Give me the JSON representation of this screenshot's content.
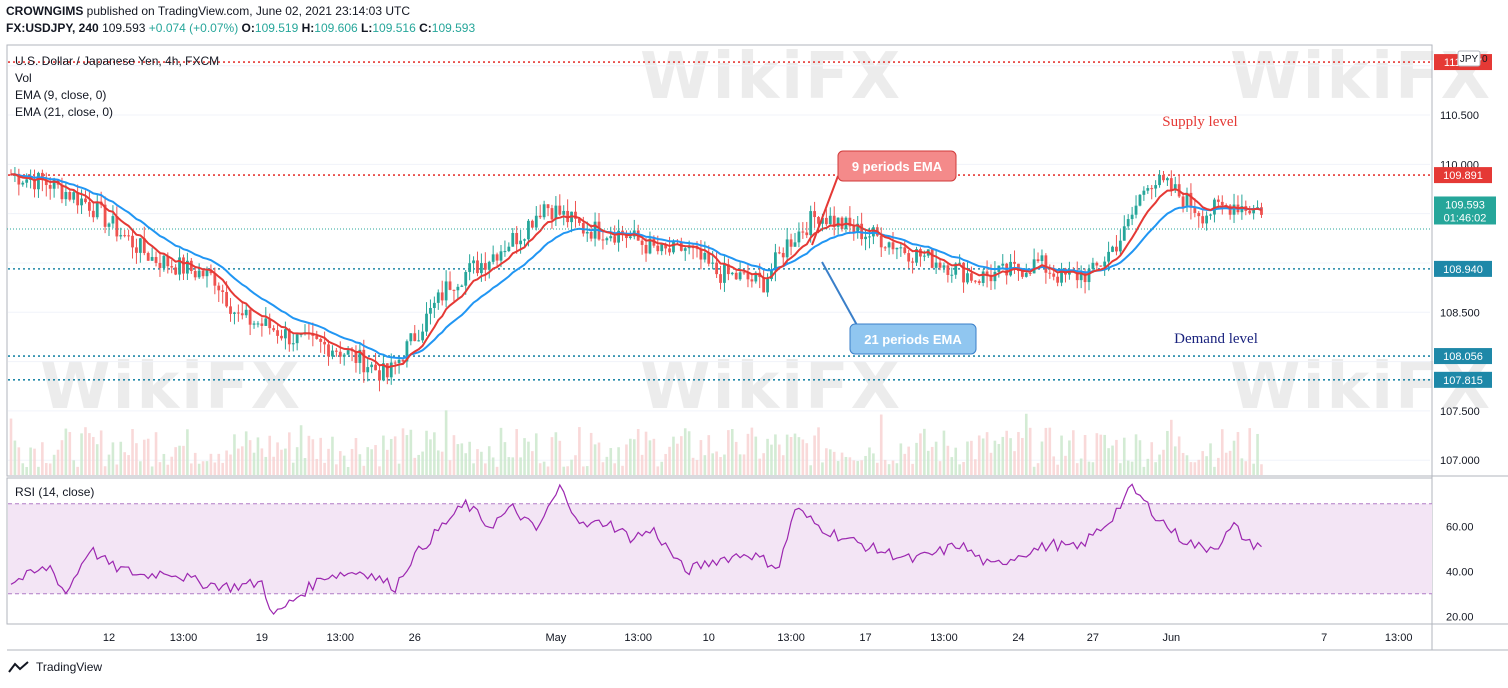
{
  "header": {
    "line1_author": "CROWNGIMS",
    "line1_rest": "published on TradingView.com, June 02, 2021 23:14:03 UTC",
    "symbol": "FX:USDJPY, 240",
    "price": "109.593",
    "change": "+0.074 (+0.07%)",
    "ohlc": {
      "o_label": "O:",
      "o": "109.519",
      "h_label": "H:",
      "h": "109.606",
      "l_label": "L:",
      "l": "109.516",
      "c_label": "C:",
      "c": "109.593"
    }
  },
  "main_pane": {
    "title": "U.S. Dollar / Japanese Yen, 4h, FXCM",
    "vol_label": "Vol",
    "ema9_label": "EMA (9, close, 0)",
    "ema21_label": "EMA (21, close, 0)",
    "currency_badge": "JPY",
    "currency_badge_num": "0"
  },
  "rsi_pane": {
    "title": "RSI (14, close)"
  },
  "watermark": "WikiFX",
  "footer": {
    "brand": "TradingView"
  },
  "colors": {
    "up": "#26a69a",
    "down": "#ef5350",
    "ema9": "#e53935",
    "ema21": "#2196f3",
    "supply": "#e53935",
    "demand": "#1e88a8",
    "rsi": "#9c27b0",
    "rsi_band": "#f3e5f5"
  },
  "chart_data": [
    {
      "type": "candlestick",
      "title": "U.S. Dollar / Japanese Yen, 4h, FXCM",
      "ylim": [
        106.85,
        111.2
      ],
      "y_ticks": [
        "107.000",
        "107.500",
        "108.500",
        "110.000",
        "110.500",
        "111.000"
      ],
      "x_ticks": [
        "12",
        "13:00",
        "19",
        "13:00",
        "26",
        "May",
        "13:00",
        "10",
        "13:00",
        "17",
        "13:00",
        "24",
        "27",
        "Jun",
        "7",
        "13:00"
      ],
      "horizontal_levels": [
        {
          "value": 111.037,
          "label": "111.037",
          "style": "dotted",
          "color": "#e53935"
        },
        {
          "value": 109.891,
          "label": "109.891",
          "style": "dotted",
          "color": "#e53935"
        },
        {
          "value": 108.94,
          "label": "108.940",
          "style": "dotted",
          "color": "#1e88a8"
        },
        {
          "value": 108.056,
          "label": "108.056",
          "style": "dotted",
          "color": "#1e88a8"
        },
        {
          "value": 107.815,
          "label": "107.815",
          "style": "dotted",
          "color": "#1e88a8"
        }
      ],
      "last_price": {
        "value": 109.593,
        "label": "109.593",
        "countdown": "01:46:02"
      },
      "price_path": [
        [
          0,
          109.9
        ],
        [
          10,
          109.8
        ],
        [
          20,
          109.6
        ],
        [
          28,
          109.3
        ],
        [
          36,
          109.05
        ],
        [
          44,
          108.95
        ],
        [
          52,
          108.85
        ],
        [
          58,
          108.45
        ],
        [
          66,
          108.35
        ],
        [
          74,
          108.2
        ],
        [
          82,
          108.15
        ],
        [
          90,
          108.0
        ],
        [
          96,
          107.85
        ],
        [
          102,
          108.2
        ],
        [
          112,
          108.8
        ],
        [
          120,
          109.0
        ],
        [
          130,
          109.3
        ],
        [
          136,
          109.6
        ],
        [
          146,
          109.35
        ],
        [
          156,
          109.3
        ],
        [
          166,
          109.1
        ],
        [
          172,
          109.15
        ],
        [
          180,
          108.9
        ],
        [
          186,
          108.85
        ],
        [
          192,
          108.8
        ],
        [
          198,
          109.2
        ],
        [
          206,
          109.5
        ],
        [
          214,
          109.35
        ],
        [
          222,
          109.25
        ],
        [
          230,
          109.1
        ],
        [
          238,
          109.0
        ],
        [
          246,
          108.85
        ],
        [
          254,
          108.9
        ],
        [
          262,
          109.0
        ],
        [
          268,
          108.85
        ],
        [
          276,
          108.9
        ],
        [
          284,
          109.3
        ],
        [
          290,
          109.85
        ],
        [
          296,
          109.75
        ],
        [
          304,
          109.5
        ],
        [
          312,
          109.6
        ],
        [
          317,
          109.55
        ]
      ],
      "annotations": [
        {
          "text": "Supply level",
          "color": "#e53935"
        },
        {
          "text": "Demand level",
          "color": "#1a237e"
        },
        {
          "text": "9 periods EMA"
        },
        {
          "text": "21 periods EMA"
        }
      ]
    },
    {
      "type": "line",
      "title": "RSI (14, close)",
      "ylim": [
        17,
        81
      ],
      "y_ticks": [
        "20.00",
        "40.00",
        "60.00"
      ],
      "bands": [
        30,
        70
      ],
      "rsi_path": [
        [
          0,
          35
        ],
        [
          10,
          42
        ],
        [
          14,
          30
        ],
        [
          20,
          50
        ],
        [
          26,
          42
        ],
        [
          34,
          38
        ],
        [
          40,
          40
        ],
        [
          48,
          35
        ],
        [
          56,
          33
        ],
        [
          64,
          35
        ],
        [
          67,
          20
        ],
        [
          74,
          30
        ],
        [
          80,
          38
        ],
        [
          90,
          40
        ],
        [
          98,
          33
        ],
        [
          102,
          45
        ],
        [
          110,
          60
        ],
        [
          116,
          70
        ],
        [
          122,
          60
        ],
        [
          128,
          68
        ],
        [
          134,
          58
        ],
        [
          140,
          77
        ],
        [
          146,
          60
        ],
        [
          152,
          62
        ],
        [
          158,
          55
        ],
        [
          164,
          58
        ],
        [
          172,
          40
        ],
        [
          180,
          45
        ],
        [
          188,
          48
        ],
        [
          196,
          42
        ],
        [
          200,
          68
        ],
        [
          206,
          60
        ],
        [
          212,
          55
        ],
        [
          220,
          50
        ],
        [
          230,
          45
        ],
        [
          236,
          48
        ],
        [
          242,
          52
        ],
        [
          250,
          42
        ],
        [
          258,
          48
        ],
        [
          266,
          52
        ],
        [
          272,
          50
        ],
        [
          280,
          62
        ],
        [
          286,
          77
        ],
        [
          292,
          65
        ],
        [
          298,
          55
        ],
        [
          304,
          50
        ],
        [
          308,
          52
        ],
        [
          312,
          60
        ],
        [
          316,
          52
        ],
        [
          318,
          52
        ]
      ]
    }
  ],
  "labels": {
    "supply": "Supply level",
    "demand": "Demand level",
    "ema9_callout": "9 periods EMA",
    "ema21_callout": "21 periods EMA"
  }
}
